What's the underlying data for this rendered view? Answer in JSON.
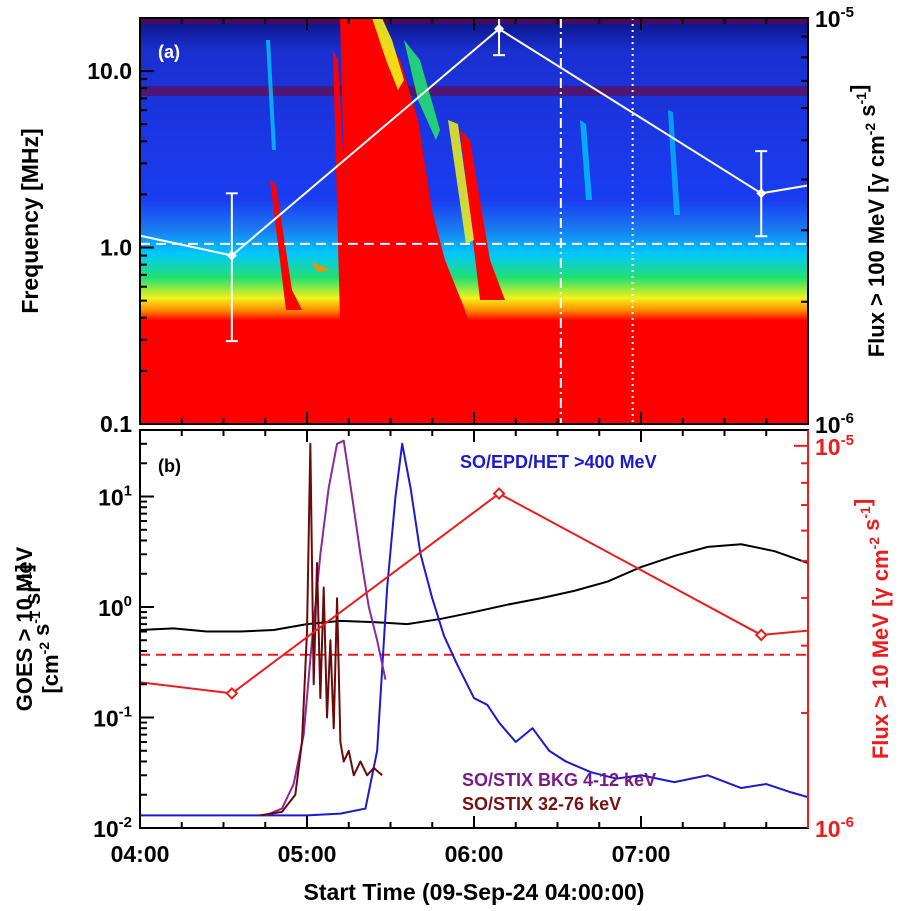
{
  "xaxis": {
    "label": "Start Time (09-Sep-24 04:00:00)",
    "range_hours": [
      4.0,
      8.0
    ],
    "ticks": [
      {
        "value": 4.0,
        "label": "04:00"
      },
      {
        "value": 5.0,
        "label": "05:00"
      },
      {
        "value": 6.0,
        "label": "06:00"
      },
      {
        "value": 7.0,
        "label": "07:00"
      }
    ]
  },
  "chart_data": [
    {
      "type": "heatmap",
      "panel_label": "(a)",
      "ylabel": "Frequency [MHz]",
      "yscale": "log",
      "ylim": [
        0.1,
        20
      ],
      "yticks": [
        {
          "value": 0.1,
          "label": "0.1"
        },
        {
          "value": 1.0,
          "label": "1.0"
        },
        {
          "value": 10.0,
          "label": "10.0"
        }
      ],
      "y2label": "Flux > 100 MeV [γ cm⁻² s⁻¹]",
      "y2label_parts": [
        "Flux > 100 MeV [",
        "γ",
        " cm",
        "-2",
        " s",
        "-1",
        "]"
      ],
      "y2scale": "log",
      "y2lim": [
        1e-06,
        1e-05
      ],
      "y2ticks": [
        {
          "value": 1e-06,
          "label": "10",
          "exp": "-6"
        },
        {
          "value": 1e-05,
          "label": "10",
          "exp": "-5"
        }
      ],
      "colormap": [
        "#00007a",
        "#1a3df2",
        "#00c8ff",
        "#22e070",
        "#f2f21a",
        "#ff8a00",
        "#ff0000"
      ],
      "series": [
        {
          "kind": "line_with_errorbars",
          "color": "#ffffff",
          "x": [
            3.85,
            4.55,
            6.15,
            7.72,
            8.05
          ],
          "y": [
            3e-06,
            2.6e-06,
            9.4e-06,
            3.7e-06,
            3.9e-06
          ],
          "err_low": [
            null,
            1.6e-06,
            8.1e-06,
            2.9e-06,
            null
          ],
          "err_high": [
            null,
            3.7e-06,
            1.09e-05,
            4.7e-06,
            null
          ]
        }
      ],
      "hlines": [
        {
          "y": 1.05,
          "style": "dashed",
          "color": "#ffffff"
        }
      ],
      "vlines": [
        {
          "x": 6.52,
          "style": "dashdot",
          "color": "#ffffff"
        },
        {
          "x": 6.95,
          "style": "dotted",
          "color": "#ffffff"
        }
      ]
    },
    {
      "type": "line",
      "panel_label": "(b)",
      "ylabel_lines": [
        [
          "GOES > 10 MeV"
        ],
        [
          "[cm",
          "-2",
          " s",
          "-1",
          " sr",
          "-1",
          "]"
        ]
      ],
      "ylabel": "GOES > 10 MeV [cm⁻² s⁻¹ sr⁻¹]",
      "yscale": "log",
      "ylim": [
        0.01,
        40
      ],
      "yticks": [
        {
          "value": 0.01,
          "label": "10",
          "exp": "-2"
        },
        {
          "value": 0.1,
          "label": "10",
          "exp": "-1"
        },
        {
          "value": 1,
          "label": "10",
          "exp": "0"
        },
        {
          "value": 10,
          "label": "10",
          "exp": "1"
        }
      ],
      "y2label": "Flux > 10 MeV [γ cm⁻² s⁻¹]",
      "y2label_parts": [
        "Flux > 10 MeV [",
        "γ",
        " cm",
        "-2",
        " s",
        "-1",
        "]"
      ],
      "y2scale": "log",
      "y2lim": [
        1e-06,
        1.1e-05
      ],
      "y2ticks": [
        {
          "value": 1e-06,
          "label": "10",
          "exp": "-6"
        },
        {
          "value": 1e-05,
          "label": "10",
          "exp": "-5"
        }
      ],
      "annotations": [
        {
          "text": "SO/EPD/HET >400 MeV",
          "color": "#1a1ad0"
        },
        {
          "text": "SO/STIX BKG 4-12 keV",
          "color": "#7a1a8a"
        },
        {
          "text": "SO/STIX 32-76 keV",
          "color": "#7a1010"
        }
      ],
      "series": [
        {
          "color": "#000000",
          "axis": "y",
          "x": [
            4.0,
            4.2,
            4.4,
            4.6,
            4.8,
            5.0,
            5.2,
            5.4,
            5.6,
            5.8,
            6.0,
            6.2,
            6.4,
            6.6,
            6.8,
            7.0,
            7.2,
            7.4,
            7.6,
            7.8,
            8.0
          ],
          "y": [
            0.62,
            0.64,
            0.6,
            0.6,
            0.62,
            0.7,
            0.75,
            0.73,
            0.7,
            0.78,
            0.9,
            1.05,
            1.2,
            1.4,
            1.7,
            2.3,
            2.9,
            3.5,
            3.7,
            3.2,
            2.5
          ]
        },
        {
          "color": "#1a1ad0",
          "axis": "y",
          "x": [
            4.0,
            4.5,
            5.0,
            5.2,
            5.35,
            5.42,
            5.48,
            5.53,
            5.57,
            5.62,
            5.68,
            5.75,
            5.82,
            5.9,
            6.0,
            6.08,
            6.15,
            6.25,
            6.35,
            6.45,
            6.55,
            6.7,
            6.85,
            7.0,
            7.2,
            7.4,
            7.6,
            7.75,
            7.9,
            8.0
          ],
          "y": [
            0.013,
            0.013,
            0.013,
            0.0135,
            0.015,
            0.05,
            1.5,
            10,
            30,
            12,
            3,
            1.2,
            0.55,
            0.3,
            0.15,
            0.13,
            0.09,
            0.06,
            0.08,
            0.05,
            0.04,
            0.032,
            0.028,
            0.03,
            0.026,
            0.03,
            0.023,
            0.025,
            0.021,
            0.019
          ]
        },
        {
          "color": "#8a2a9a",
          "axis": "y",
          "x": [
            4.75,
            4.85,
            4.92,
            4.98,
            5.03,
            5.08,
            5.13,
            5.18,
            5.22,
            5.27,
            5.32,
            5.37,
            5.42,
            5.47
          ],
          "y": [
            0.013,
            0.015,
            0.025,
            0.07,
            0.5,
            3,
            12,
            30,
            32,
            10,
            3,
            1,
            0.5,
            0.22
          ]
        },
        {
          "color": "#6a0a0a",
          "axis": "y",
          "x": [
            4.72,
            4.85,
            4.93,
            4.97,
            5.0,
            5.02,
            5.04,
            5.06,
            5.08,
            5.1,
            5.12,
            5.14,
            5.16,
            5.18,
            5.2,
            5.22,
            5.25,
            5.28,
            5.32,
            5.36,
            5.4,
            5.45
          ],
          "y": [
            0.013,
            0.014,
            0.02,
            0.06,
            0.6,
            30,
            0.2,
            2.5,
            0.15,
            1.5,
            0.1,
            0.5,
            0.08,
            1.2,
            0.06,
            0.04,
            0.05,
            0.03,
            0.04,
            0.03,
            0.035,
            0.03
          ]
        },
        {
          "color": "#ee1c1c",
          "axis": "y2",
          "markers": "diamond",
          "x": [
            3.85,
            4.55,
            6.15,
            7.72,
            8.05
          ],
          "y": [
            2.45e-06,
            2.25e-06,
            7.5e-06,
            3.2e-06,
            3.3e-06
          ]
        }
      ],
      "hlines": [
        {
          "y": 0.37,
          "style": "dashed",
          "color": "#ee1c1c"
        }
      ]
    }
  ]
}
